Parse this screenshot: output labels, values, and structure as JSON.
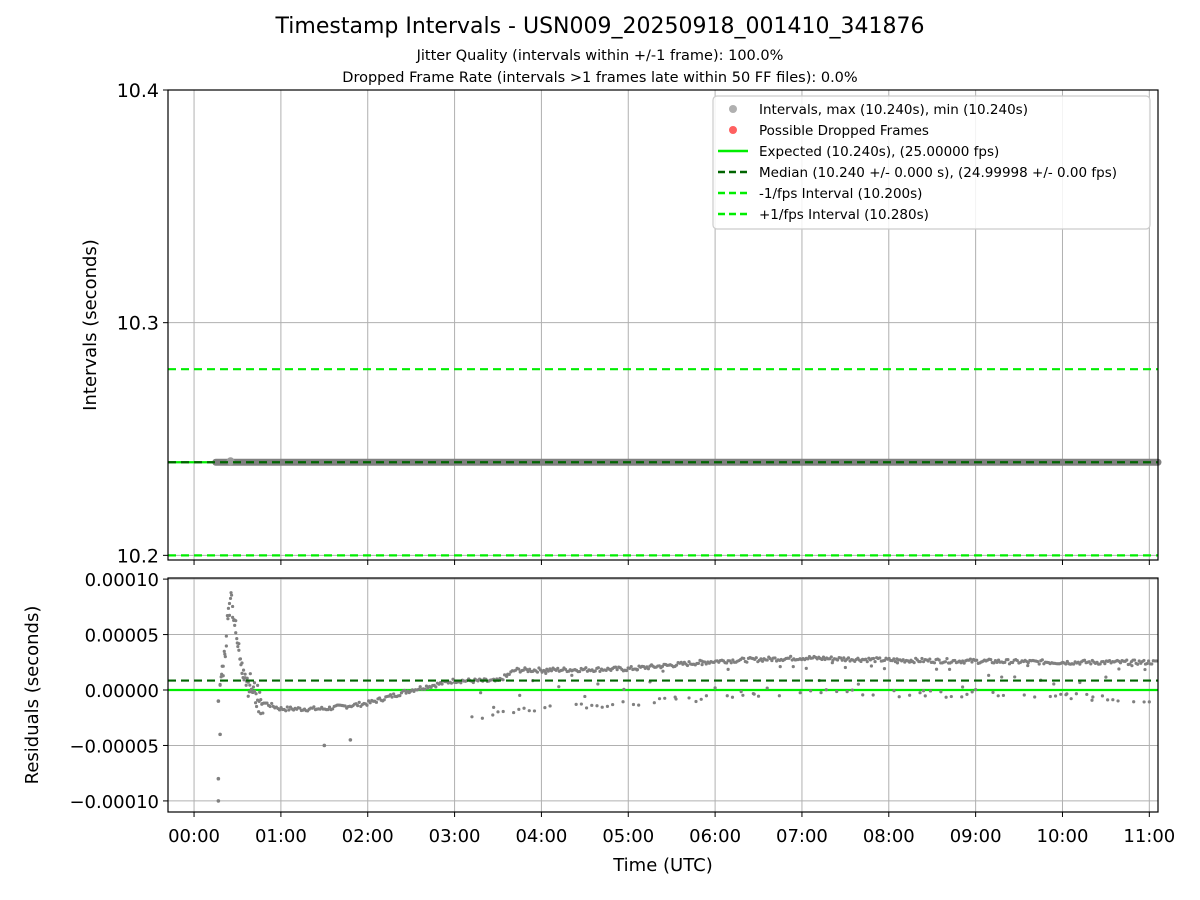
{
  "chart_data": [
    {
      "type": "scatter",
      "title": "Timestamp Intervals - USN009_20250918_001410_341876",
      "subtitle_jitter": "Jitter Quality (intervals within +/-1 frame): 100.0%",
      "subtitle_dropped": "Dropped Frame Rate (intervals >1 frames late within 50 FF files): 0.0%",
      "ylabel": "Intervals (seconds)",
      "ylim": [
        10.198,
        10.4
      ],
      "yticks": [
        10.2,
        10.3,
        10.4
      ],
      "ytick_labels": [
        "10.2",
        "10.3",
        "10.4"
      ],
      "grid": true,
      "legend_position": "upper-right",
      "legend": [
        {
          "label": "Intervals, max (10.240s), min (10.240s)",
          "kind": "marker",
          "color": "#b0b0b0"
        },
        {
          "label": "Possible Dropped Frames",
          "kind": "marker",
          "color": "#ff6060"
        },
        {
          "label": "Expected (10.240s), (25.00000 fps)",
          "kind": "solid",
          "color": "#00ee00"
        },
        {
          "label": "Median (10.240 +/- 0.000 s), (24.99998 +/- 0.00 fps)",
          "kind": "dashed",
          "color": "#006400"
        },
        {
          "label": "-1/fps Interval (10.200s)",
          "kind": "dashed",
          "color": "#00ee00"
        },
        {
          "label": "+1/fps Interval (10.280s)",
          "kind": "dashed",
          "color": "#00ee00"
        }
      ],
      "series": [
        {
          "name": "Intervals",
          "x_start_hours": 0.25,
          "x_end_hours": 11.1,
          "y": 10.24,
          "color": "#808080"
        },
        {
          "name": "Expected",
          "y": 10.24,
          "color": "#00ee00"
        },
        {
          "name": "Median",
          "y": 10.24,
          "color": "#006400"
        },
        {
          "name": "-1/fps Interval",
          "y": 10.2,
          "color": "#00ee00"
        },
        {
          "name": "+1/fps Interval",
          "y": 10.28,
          "color": "#00ee00"
        }
      ]
    },
    {
      "type": "scatter",
      "ylabel": "Residuals (seconds)",
      "xlabel": "Time (UTC)",
      "xlim": [
        -0.3,
        11.1
      ],
      "ylim": [
        -0.00011,
        0.000101
      ],
      "yticks": [
        -0.0001,
        -5e-05,
        0,
        5e-05,
        0.0001
      ],
      "ytick_labels": [
        "−0.00010",
        "−0.00005",
        "0.00000",
        "0.00005",
        "0.00010"
      ],
      "xticks": [
        0,
        1,
        2,
        3,
        4,
        5,
        6,
        7,
        8,
        9,
        10,
        11
      ],
      "xtick_labels": [
        "00:00",
        "01:00",
        "02:00",
        "03:00",
        "04:00",
        "05:00",
        "06:00",
        "07:00",
        "08:00",
        "09:00",
        "10:00",
        "11:00"
      ],
      "grid": true,
      "reference_lines": [
        {
          "name": "Expected",
          "y": 0,
          "color": "#00ee00"
        },
        {
          "name": "Median",
          "y": 8.5e-06,
          "color": "#006400"
        }
      ],
      "residual_trend": [
        [
          0.3,
          5e-06
        ],
        [
          0.35,
          3e-05
        ],
        [
          0.42,
          9e-05
        ],
        [
          0.5,
          4e-05
        ],
        [
          0.6,
          1e-05
        ],
        [
          0.75,
          -1e-05
        ],
        [
          1.0,
          -1.7e-05
        ],
        [
          1.5,
          -1.7e-05
        ],
        [
          2.0,
          -1.2e-05
        ],
        [
          2.5,
          0.0
        ],
        [
          3.0,
          8.5e-06
        ],
        [
          3.5,
          8e-06
        ],
        [
          3.7,
          1.8e-05
        ],
        [
          4.0,
          1.8e-05
        ],
        [
          5.0,
          1.9e-05
        ],
        [
          6.0,
          2.6e-05
        ],
        [
          7.0,
          2.9e-05
        ],
        [
          8.0,
          2.7e-05
        ],
        [
          9.0,
          2.6e-05
        ],
        [
          10.0,
          2.5e-05
        ],
        [
          11.1,
          2.5e-05
        ]
      ],
      "residual_lower_band": [
        [
          3.2,
          -2.5e-05
        ],
        [
          4.0,
          -1.5e-05
        ],
        [
          5.0,
          -1.3e-05
        ],
        [
          6.0,
          -6e-06
        ],
        [
          7.0,
          -2e-06
        ],
        [
          8.0,
          -3e-06
        ],
        [
          9.0,
          -4e-06
        ],
        [
          10.0,
          -6e-06
        ],
        [
          11.0,
          -8e-06
        ]
      ],
      "residual_outliers": [
        [
          0.28,
          -0.0001
        ],
        [
          0.28,
          -8e-05
        ],
        [
          0.3,
          -4e-05
        ],
        [
          1.5,
          -5e-05
        ],
        [
          1.8,
          -4.5e-05
        ],
        [
          0.28,
          -1e-05
        ]
      ]
    }
  ]
}
